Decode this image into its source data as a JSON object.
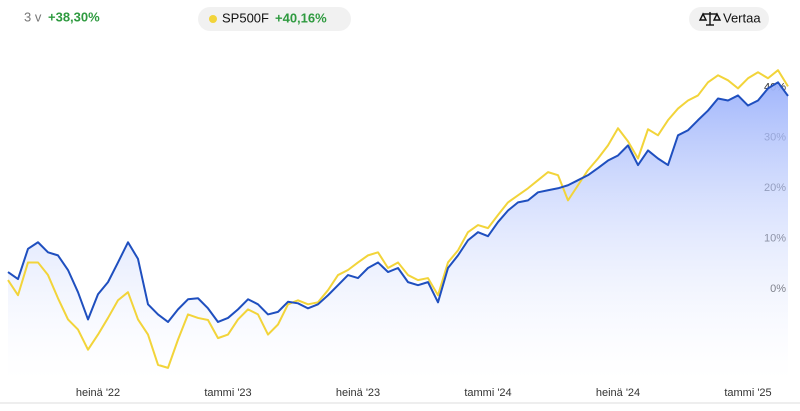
{
  "header": {
    "period": "3 v",
    "change": "+38,30%",
    "compare_change": "+40,16%",
    "compare_button": "Vertaa"
  },
  "chart_data": {
    "type": "line",
    "categories": [
      null,
      null,
      null,
      null,
      null,
      null,
      null,
      null,
      null,
      "heinä '22",
      null,
      null,
      null,
      null,
      null,
      null,
      null,
      null,
      null,
      null,
      null,
      null,
      "tammi '23",
      null,
      null,
      null,
      null,
      null,
      null,
      null,
      null,
      null,
      null,
      null,
      null,
      "heinä '23",
      null,
      null,
      null,
      null,
      null,
      null,
      null,
      null,
      null,
      null,
      null,
      null,
      "tammi '24",
      null,
      null,
      null,
      null,
      null,
      null,
      null,
      null,
      null,
      null,
      null,
      null,
      "heinä '24",
      null,
      null,
      null,
      null,
      null,
      null,
      null,
      null,
      null,
      null,
      null,
      null,
      "tammi '25",
      null,
      null,
      null,
      null
    ],
    "series": [
      {
        "color": "#1f4fbf",
        "area": true,
        "values": [
          3.4,
          2,
          8,
          9.3,
          7.3,
          6.7,
          3.8,
          -0.6,
          -6,
          -1,
          1.4,
          5.3,
          9.3,
          6,
          -3,
          -5,
          -6.5,
          -4,
          -2,
          -1.8,
          -3.8,
          -6.5,
          -5.7,
          -4,
          -2,
          -3,
          -5,
          -4.5,
          -2.5,
          -2.8,
          -3.8,
          -3,
          -1.2,
          0.8,
          2.8,
          2.2,
          4.2,
          5.3,
          3.4,
          4.2,
          1.4,
          0.8,
          1.4,
          -2.6,
          4.2,
          6.7,
          9.7,
          11.3,
          10.5,
          13.3,
          15.6,
          17.2,
          17.6,
          19.2,
          19.6,
          20,
          20.6,
          21.6,
          22.6,
          24,
          25.5,
          26.5,
          28.5,
          24.6,
          27.5,
          25.9,
          24.6,
          30.5,
          31.5,
          33.5,
          35.4,
          37.8,
          37.4,
          38.4,
          36.4,
          37.4,
          39.8,
          41,
          38.3
        ]
      },
      {
        "name": "SP500F",
        "color": "#f2d43a",
        "area": false,
        "values": [
          1.8,
          -1.2,
          5.3,
          5.3,
          2.8,
          -1.8,
          -6,
          -8,
          -12,
          -9,
          -5.7,
          -2.2,
          -0.6,
          -6,
          -9,
          -15,
          -15.6,
          -10,
          -5,
          -5.7,
          -6.1,
          -9.7,
          -9,
          -6,
          -4,
          -5,
          -9,
          -7,
          -3,
          -2.2,
          -3,
          -2.6,
          -0.2,
          2.8,
          3.8,
          5.3,
          6.7,
          7.3,
          4.2,
          5.3,
          2.8,
          1.8,
          2.2,
          -1.2,
          5.3,
          7.7,
          11.3,
          12.7,
          12.1,
          14.7,
          17.2,
          18.6,
          20,
          21.6,
          23.2,
          22.6,
          17.6,
          20.6,
          23.6,
          25.9,
          28.5,
          31.9,
          29.3,
          25.9,
          31.7,
          30.5,
          33.5,
          35.8,
          37.4,
          38.4,
          41,
          42.4,
          41.4,
          39.8,
          41.8,
          43,
          41.8,
          43.4,
          40.2
        ]
      }
    ],
    "ylim": [
      -18,
      48
    ],
    "yticks": [
      {
        "value": 0,
        "label": "0%"
      },
      {
        "value": 10,
        "label": "10%"
      },
      {
        "value": 20,
        "label": "20%"
      },
      {
        "value": 30,
        "label": "30%"
      },
      {
        "value": 40,
        "label": "40%"
      }
    ],
    "grid": false
  }
}
